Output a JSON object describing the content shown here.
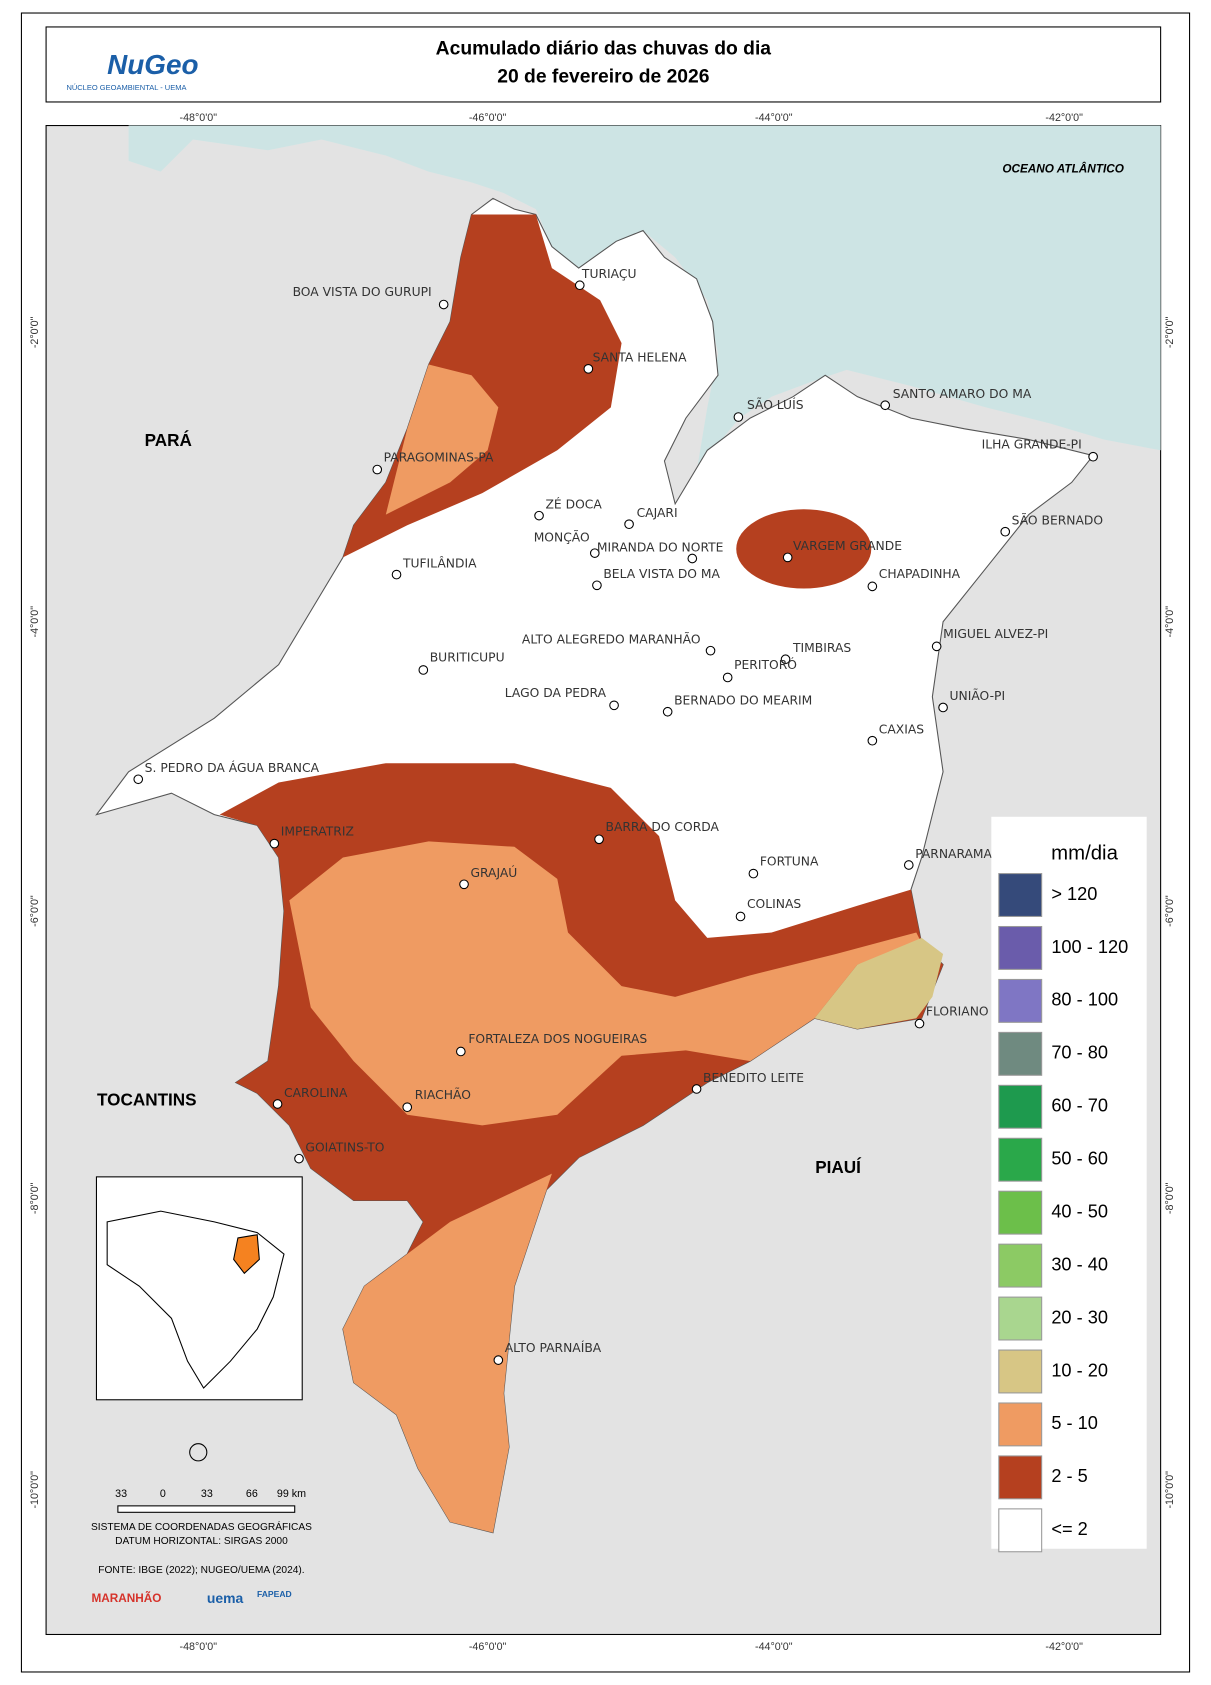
{
  "header": {
    "logo": "NuGeo",
    "logo_subtitle": "NÚCLEO GEOAMBIENTAL - UEMA",
    "title_line1": "Acumulado diário das chuvas do dia",
    "title_line2": "20 de fevereiro de 2026"
  },
  "map": {
    "ocean_label": "OCEANO ATLÂNTICO",
    "state_labels": [
      "PARÁ",
      "TOCANTINS",
      "PIAUÍ"
    ],
    "cities": [
      "BOA VISTA DO GURUPI",
      "TURIAÇU",
      "SANTA HELENA",
      "SÃO LUÍS",
      "SANTO AMARO DO MA",
      "ILHA GRANDE-PI",
      "PARAGOMINAS-PA",
      "ZÉ DOCA",
      "CAJARI",
      "SÃO BERNADO",
      "MONÇÃO",
      "MIRANDA DO NORTE",
      "VARGEM GRANDE",
      "TUFILÂNDIA",
      "BELA VISTA DO MA",
      "CHAPADINHA",
      "ALTO ALEGREDO MARANHÃO",
      "TIMBIRAS",
      "MIGUEL ALVEZ-PI",
      "BURITICUPU",
      "PERITORÓ",
      "LAGO DA PEDRA",
      "BERNADO DO MEARIM",
      "UNIÃO-PI",
      "CAXIAS",
      "S. PEDRO DA ÁGUA BRANCA",
      "IMPERATRIZ",
      "BARRA DO CORDA",
      "PARNARAMA",
      "FORTUNA",
      "GRAJAÚ",
      "COLINAS",
      "FLORIANO",
      "FORTALEZA DOS NOGUEIRAS",
      "BENEDITO LEITE",
      "CAROLINA",
      "RIACHÃO",
      "GOIATINS-TO",
      "ALTO PARNAÍBA"
    ],
    "longitudes": [
      "-48°0'0\"",
      "-46°0'0\"",
      "-44°0'0\"",
      "-42°0'0\""
    ],
    "latitudes": [
      "-2°0'0\"",
      "-4°0'0\"",
      "-6°0'0\"",
      "-8°0'0\"",
      "-10°0'0\""
    ]
  },
  "legend": {
    "title": "mm/dia",
    "items": [
      {
        "label": "> 120",
        "color": "#354a7a"
      },
      {
        "label": "100 - 120",
        "color": "#6a5cab"
      },
      {
        "label": "80 - 100",
        "color": "#7f76c4"
      },
      {
        "label": "70 - 80",
        "color": "#6f8a80"
      },
      {
        "label": "60 - 70",
        "color": "#1e9a4e"
      },
      {
        "label": "50 - 60",
        "color": "#2aa84a"
      },
      {
        "label": "40 - 50",
        "color": "#6cbf4a"
      },
      {
        "label": "30 - 40",
        "color": "#8cca64"
      },
      {
        "label": "20 - 30",
        "color": "#a9d68f"
      },
      {
        "label": "10 - 20",
        "color": "#d7c685"
      },
      {
        "label": "5 - 10",
        "color": "#ef9b62"
      },
      {
        "label": "2 - 5",
        "color": "#b5401f"
      },
      {
        "label": "<= 2",
        "color": "#ffffff"
      }
    ]
  },
  "scale_bar": {
    "ticks": [
      "33",
      "0",
      "33",
      "66",
      "99 km"
    ]
  },
  "notes": [
    "SISTEMA DE COORDENADAS GEOGRÁFICAS",
    "DATUM HORIZONTAL: SIRGAS 2000",
    "FONTE: IBGE (2022); NUGEO/UEMA (2024)."
  ],
  "logos": [
    "MARANHÃO",
    "uema",
    "FAPEAD"
  ]
}
